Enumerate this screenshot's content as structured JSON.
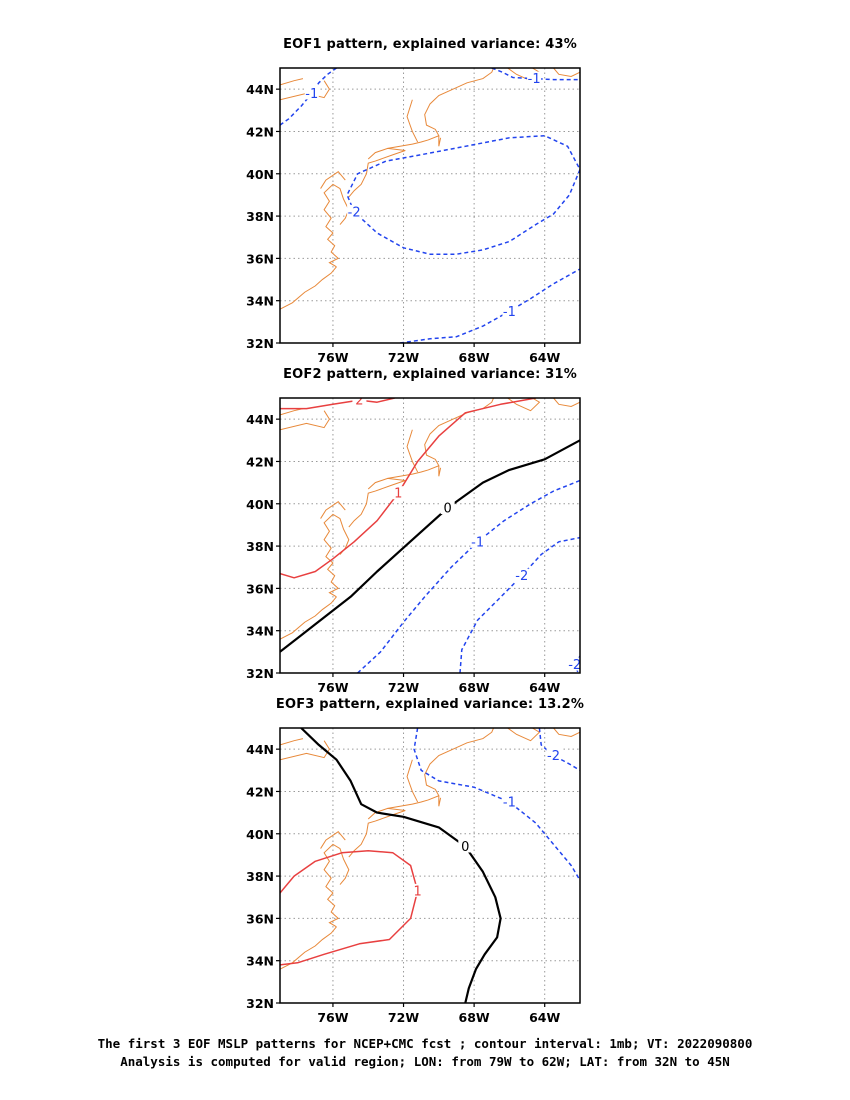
{
  "panels": [
    {
      "title": "EOF1 pattern, explained variance: 43%"
    },
    {
      "title": "EOF2 pattern, explained variance: 31%"
    },
    {
      "title": "EOF3 pattern, explained variance: 13.2%"
    }
  ],
  "caption": {
    "line1": "The first 3 EOF MSLP patterns for NCEP+CMC fcst ; contour interval: 1mb; VT: 2022090800",
    "line2": "Analysis is computed for valid region; LON: from 79W to 62W; LAT: from 32N to 45N"
  },
  "colors": {
    "coast": "#e8893a",
    "positive": "#e84040",
    "negative": "#2244ee",
    "zero": "#000000",
    "grid": "#9a9a9a"
  },
  "chart_data": [
    {
      "type": "contour",
      "title": "EOF1 pattern, explained variance: 43%",
      "x_ticks": [
        "76W",
        "72W",
        "68W",
        "64W"
      ],
      "y_ticks": [
        "32N",
        "34N",
        "36N",
        "38N",
        "40N",
        "42N",
        "44N"
      ],
      "xlim": [
        -79,
        -62
      ],
      "ylim": [
        32,
        45
      ],
      "grid": true,
      "contours": [
        {
          "value": -1,
          "label": "-1",
          "style": "dashed",
          "color": "negative",
          "points": [
            [
              -79,
              42.3
            ],
            [
              -78.5,
              42.6
            ],
            [
              -77.8,
              43.2
            ],
            [
              -77.2,
              43.8
            ],
            [
              -76.8,
              44.3
            ],
            [
              -76.3,
              44.7
            ],
            [
              -75.8,
              45
            ]
          ]
        },
        {
          "value": -1,
          "label": "-1",
          "style": "dashed",
          "color": "negative",
          "points": [
            [
              -67,
              45
            ],
            [
              -66.4,
              44.8
            ],
            [
              -65.8,
              44.55
            ],
            [
              -64.6,
              44.5
            ],
            [
              -63.5,
              44.45
            ],
            [
              -62,
              44.45
            ]
          ]
        },
        {
          "value": -2,
          "label": "-2",
          "style": "dashed",
          "color": "negative",
          "points": [
            [
              -62,
              40.2
            ],
            [
              -62.6,
              39
            ],
            [
              -63.5,
              38.1
            ],
            [
              -64.5,
              37.6
            ],
            [
              -66,
              36.8
            ],
            [
              -67.5,
              36.4
            ],
            [
              -69,
              36.2
            ],
            [
              -70.5,
              36.2
            ],
            [
              -72,
              36.5
            ],
            [
              -73.5,
              37.2
            ],
            [
              -74.8,
              38.2
            ],
            [
              -75.2,
              39
            ],
            [
              -74.6,
              40
            ],
            [
              -73,
              40.6
            ],
            [
              -71,
              40.9
            ],
            [
              -68.5,
              41.3
            ],
            [
              -66,
              41.7
            ],
            [
              -64,
              41.8
            ],
            [
              -62.7,
              41.3
            ],
            [
              -62,
              40.2
            ]
          ]
        },
        {
          "value": -1,
          "label": "-1",
          "style": "dashed",
          "color": "negative",
          "points": [
            [
              -72.2,
              32
            ],
            [
              -70.5,
              32.2
            ],
            [
              -69,
              32.3
            ],
            [
              -67.5,
              32.8
            ],
            [
              -66,
              33.5
            ],
            [
              -64.8,
              34.1
            ],
            [
              -63.5,
              34.8
            ],
            [
              -62,
              35.5
            ]
          ]
        }
      ]
    },
    {
      "type": "contour",
      "title": "EOF2 pattern, explained variance: 31%",
      "x_ticks": [
        "76W",
        "72W",
        "68W",
        "64W"
      ],
      "y_ticks": [
        "32N",
        "34N",
        "36N",
        "38N",
        "40N",
        "42N",
        "44N"
      ],
      "xlim": [
        -79,
        -62
      ],
      "ylim": [
        32,
        45
      ],
      "grid": true,
      "contours": [
        {
          "value": 2,
          "label": "2",
          "style": "solid",
          "color": "positive",
          "points": [
            [
              -79,
              44.5
            ],
            [
              -77.5,
              44.5
            ],
            [
              -76,
              44.7
            ],
            [
              -74.5,
              44.9
            ],
            [
              -73.5,
              44.8
            ],
            [
              -72.5,
              45
            ]
          ]
        },
        {
          "value": 1,
          "label": "1",
          "style": "solid",
          "color": "positive",
          "points": [
            [
              -79,
              36.7
            ],
            [
              -78.2,
              36.5
            ],
            [
              -77,
              36.8
            ],
            [
              -76,
              37.4
            ],
            [
              -74.8,
              38.2
            ],
            [
              -73.5,
              39.2
            ],
            [
              -72.3,
              40.5
            ],
            [
              -71.2,
              42
            ],
            [
              -70,
              43.2
            ],
            [
              -68.5,
              44.3
            ],
            [
              -66.5,
              44.7
            ],
            [
              -64.5,
              45
            ]
          ]
        },
        {
          "value": 0,
          "label": "0",
          "style": "solid",
          "color": "zero",
          "points": [
            [
              -79,
              33
            ],
            [
              -77,
              34.3
            ],
            [
              -75,
              35.6
            ],
            [
              -73.5,
              36.8
            ],
            [
              -71.5,
              38.3
            ],
            [
              -69.5,
              39.8
            ],
            [
              -67.5,
              41
            ],
            [
              -66,
              41.6
            ],
            [
              -64,
              42.1
            ],
            [
              -62,
              43
            ]
          ]
        },
        {
          "value": -1,
          "label": "-1",
          "style": "dashed",
          "color": "negative",
          "points": [
            [
              -74.6,
              32
            ],
            [
              -73.3,
              33
            ],
            [
              -72,
              34.4
            ],
            [
              -70.8,
              35.6
            ],
            [
              -69.3,
              37
            ],
            [
              -67.8,
              38.2
            ],
            [
              -66.3,
              39.2
            ],
            [
              -64.8,
              40
            ],
            [
              -63.5,
              40.6
            ],
            [
              -62,
              41.1
            ]
          ]
        },
        {
          "value": -2,
          "label": "-2",
          "style": "dashed",
          "color": "negative",
          "points": [
            [
              -68.8,
              32
            ],
            [
              -68.7,
              33.1
            ],
            [
              -67.8,
              34.5
            ],
            [
              -66.6,
              35.5
            ],
            [
              -65.3,
              36.6
            ],
            [
              -64.2,
              37.6
            ],
            [
              -63.2,
              38.2
            ],
            [
              -62,
              38.4
            ]
          ]
        },
        {
          "value": -2,
          "label": "-2",
          "style": "dashed",
          "color": "negative",
          "points": [
            [
              -62,
              32.8
            ],
            [
              -62.3,
              32.4
            ],
            [
              -62.1,
              32
            ]
          ]
        }
      ]
    },
    {
      "type": "contour",
      "title": "EOF3 pattern, explained variance: 13.2%",
      "x_ticks": [
        "76W",
        "72W",
        "68W",
        "64W"
      ],
      "y_ticks": [
        "32N",
        "34N",
        "36N",
        "38N",
        "40N",
        "42N",
        "44N"
      ],
      "xlim": [
        -79,
        -62
      ],
      "ylim": [
        32,
        45
      ],
      "grid": true,
      "contours": [
        {
          "value": -1,
          "label": "-1",
          "style": "dashed",
          "color": "negative",
          "points": [
            [
              -71.2,
              45
            ],
            [
              -71.4,
              44
            ],
            [
              -71,
              43
            ],
            [
              -70,
              42.5
            ],
            [
              -68,
              42.2
            ],
            [
              -66,
              41.5
            ],
            [
              -64.5,
              40.5
            ],
            [
              -63.5,
              39.5
            ],
            [
              -62.5,
              38.5
            ],
            [
              -62,
              37.8
            ]
          ]
        },
        {
          "value": -2,
          "label": "-2",
          "style": "dashed",
          "color": "negative",
          "points": [
            [
              -64.3,
              45
            ],
            [
              -64.2,
              44.2
            ],
            [
              -63.5,
              43.7
            ],
            [
              -62.6,
              43.3
            ],
            [
              -62,
              43
            ]
          ]
        },
        {
          "value": 0,
          "label": "0",
          "style": "solid",
          "color": "zero",
          "points": [
            [
              -77.8,
              45
            ],
            [
              -76.8,
              44.2
            ],
            [
              -75.8,
              43.5
            ],
            [
              -75,
              42.5
            ],
            [
              -74.4,
              41.4
            ],
            [
              -73.5,
              41
            ],
            [
              -72,
              40.8
            ],
            [
              -70,
              40.3
            ],
            [
              -68.5,
              39.4
            ],
            [
              -67.5,
              38.2
            ],
            [
              -66.8,
              37
            ],
            [
              -66.5,
              36
            ],
            [
              -66.7,
              35.1
            ],
            [
              -67.4,
              34.3
            ],
            [
              -67.9,
              33.6
            ],
            [
              -68.3,
              32.7
            ],
            [
              -68.5,
              32
            ]
          ]
        },
        {
          "value": 1,
          "label": "1",
          "style": "solid",
          "color": "positive",
          "points": [
            [
              -79,
              37.2
            ],
            [
              -78.2,
              38
            ],
            [
              -77,
              38.7
            ],
            [
              -75.5,
              39.1
            ],
            [
              -74,
              39.2
            ],
            [
              -72.6,
              39.1
            ],
            [
              -71.6,
              38.5
            ],
            [
              -71.2,
              37.3
            ],
            [
              -71.6,
              36
            ],
            [
              -72.8,
              35
            ],
            [
              -74.5,
              34.8
            ],
            [
              -76.5,
              34.3
            ],
            [
              -78,
              33.9
            ],
            [
              -79,
              33.8
            ]
          ]
        }
      ]
    }
  ]
}
